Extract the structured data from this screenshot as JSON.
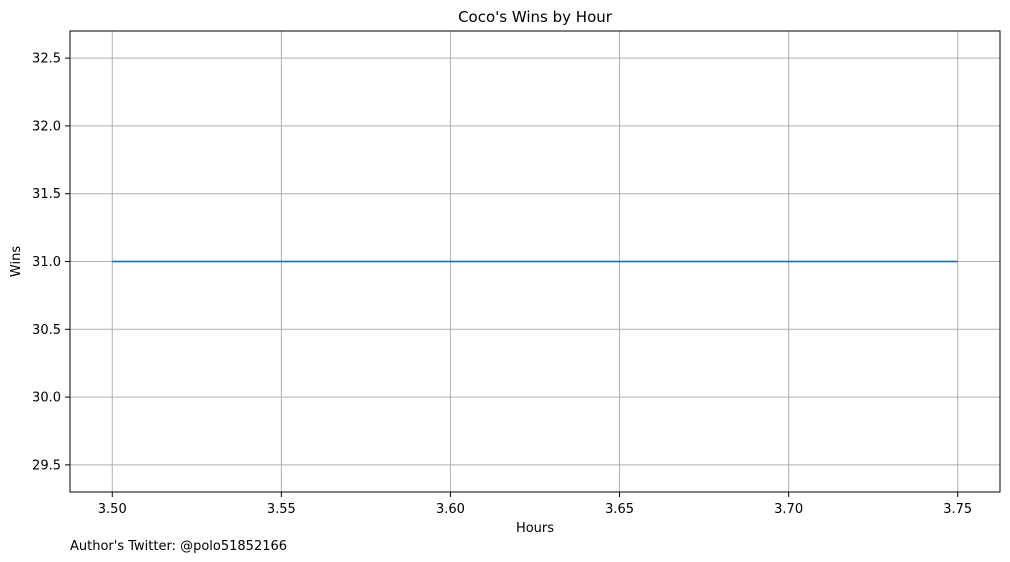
{
  "chart_data": {
    "type": "line",
    "title": "Coco's Wins by Hour",
    "xlabel": "Hours",
    "ylabel": "Wins",
    "x": [
      3.5,
      3.75
    ],
    "series": [
      {
        "values": [
          31,
          31
        ],
        "color": "#1f77b4"
      }
    ],
    "xlim": [
      3.4875,
      3.7625
    ],
    "ylim": [
      29.3,
      32.7
    ],
    "xticks": [
      3.5,
      3.55,
      3.6,
      3.65,
      3.7,
      3.75
    ],
    "xtick_labels": [
      "3.50",
      "3.55",
      "3.60",
      "3.65",
      "3.70",
      "3.75"
    ],
    "yticks": [
      29.5,
      30.0,
      30.5,
      31.0,
      31.5,
      32.0,
      32.5
    ],
    "ytick_labels": [
      "29.5",
      "30.0",
      "30.5",
      "31.0",
      "31.5",
      "32.0",
      "32.5"
    ],
    "grid": true,
    "grid_color": "#b0b0b0"
  },
  "footer": {
    "author": "Author's Twitter: @polo51852166"
  }
}
